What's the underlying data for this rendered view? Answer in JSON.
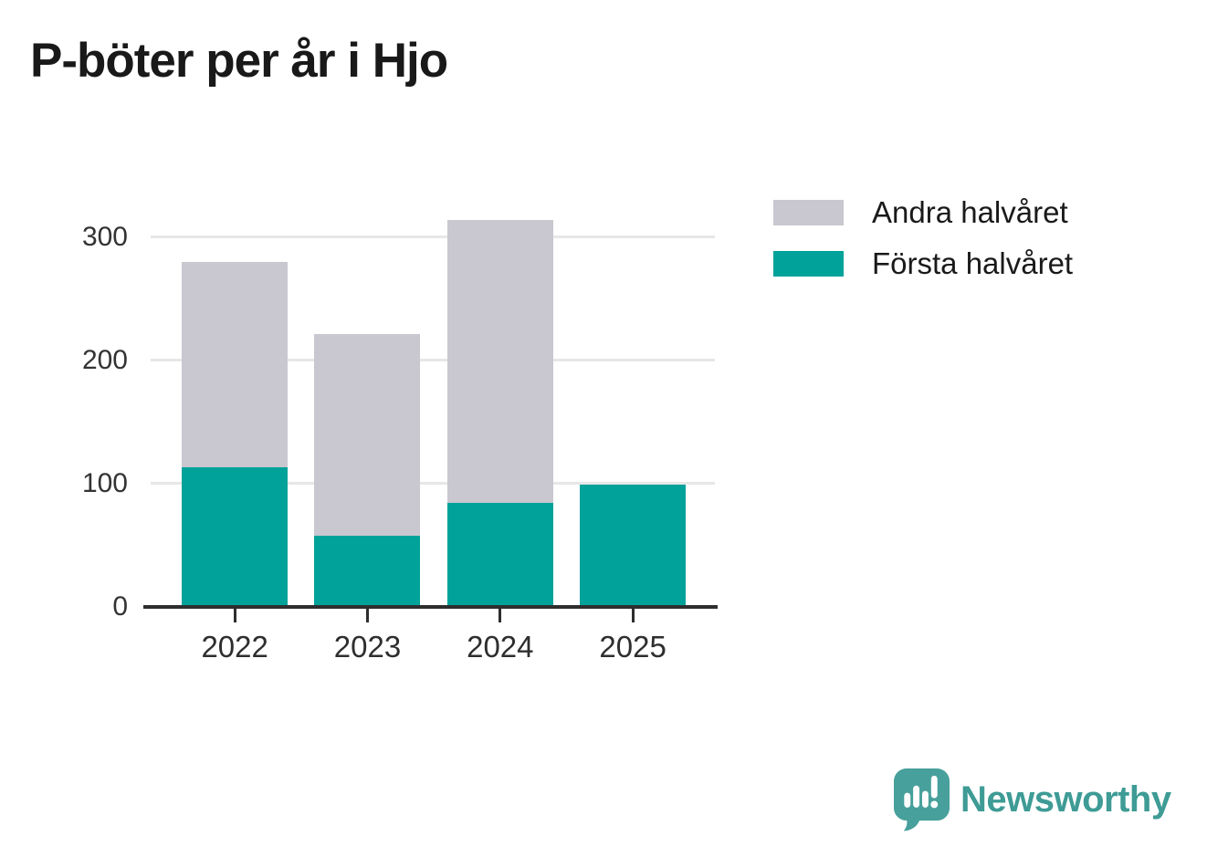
{
  "title": "P-böter per år i Hjo",
  "legend": {
    "items": [
      {
        "label": "Andra halvåret",
        "color": "#c9c7cf"
      },
      {
        "label": "Första halvåret",
        "color": "#00a29a"
      }
    ]
  },
  "chart_data": {
    "type": "bar",
    "stacked": true,
    "title": "P-böter per år i Hjo",
    "categories": [
      "2022",
      "2023",
      "2024",
      "2025"
    ],
    "series": [
      {
        "name": "Första halvåret",
        "color": "#00a29a",
        "values": [
          113,
          58,
          84,
          99
        ]
      },
      {
        "name": "Andra halvåret",
        "color": "#c9c7cf",
        "values": [
          167,
          163,
          230,
          0
        ]
      }
    ],
    "totals": [
      280,
      221,
      314,
      99
    ],
    "xlabel": "",
    "ylabel": "",
    "ylim": [
      0,
      300
    ],
    "yticks": [
      0,
      100,
      200,
      300
    ],
    "grid": true,
    "gridline_color": "#e7e7e7",
    "axis_color": "#2e2e2e",
    "legend_position": "top-right"
  },
  "branding": {
    "logo_text": "Newsworthy",
    "logo_color": "#3e9b95",
    "logo_icon": "speech-bubble-bar-chart-exclamation",
    "icon_fill": "#47a09b"
  }
}
